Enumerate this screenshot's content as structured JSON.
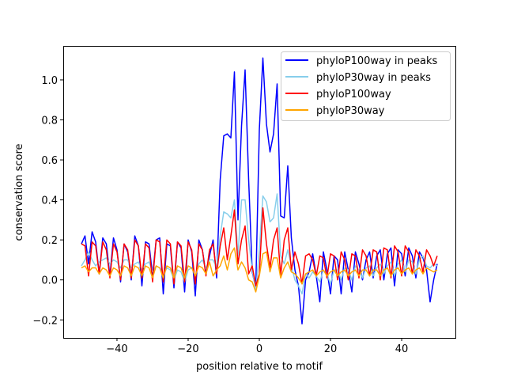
{
  "chart_data": {
    "type": "line",
    "title": "",
    "xlabel": "position relative to motif",
    "ylabel": "conservation score",
    "xlim": [
      -55.1,
      55.1
    ],
    "ylim": [
      -0.29,
      1.17
    ],
    "xticks": [
      -40,
      -20,
      0,
      20,
      40
    ],
    "xtick_labels": [
      "−40",
      "−20",
      "0",
      "20",
      "40"
    ],
    "yticks": [
      -0.2,
      0.0,
      0.2,
      0.4,
      0.6,
      0.8,
      1.0
    ],
    "ytick_labels": [
      "−0.2",
      "0.0",
      "0.2",
      "0.4",
      "0.6",
      "0.8",
      "1.0"
    ],
    "grid": false,
    "legend_position": "top-right",
    "x_range": [
      -50,
      50
    ],
    "series": [
      {
        "name": "phyloP100way in peaks",
        "color": "#0000ff",
        "values": [
          0.18,
          0.22,
          0.08,
          0.24,
          0.19,
          0.03,
          0.21,
          0.18,
          0.02,
          0.21,
          0.15,
          -0.01,
          0.18,
          0.14,
          0.0,
          0.22,
          0.17,
          -0.03,
          0.19,
          0.18,
          0.02,
          0.2,
          0.21,
          -0.07,
          0.18,
          0.17,
          -0.04,
          0.19,
          0.16,
          -0.06,
          0.2,
          0.14,
          -0.08,
          0.2,
          0.15,
          0.03,
          0.12,
          0.2,
          0.01,
          0.5,
          0.72,
          0.73,
          0.71,
          1.04,
          0.3,
          0.77,
          1.05,
          0.5,
          0.04,
          -0.04,
          0.75,
          1.11,
          0.78,
          0.64,
          0.73,
          0.98,
          0.32,
          0.31,
          0.57,
          0.21,
          0.05,
          -0.03,
          -0.22,
          0.0,
          0.04,
          0.13,
          0.02,
          -0.11,
          0.14,
          0.05,
          -0.07,
          0.12,
          0.1,
          -0.07,
          0.14,
          0.05,
          -0.06,
          0.14,
          0.08,
          0.0,
          0.1,
          0.14,
          0.01,
          0.12,
          0.15,
          0.0,
          0.13,
          0.16,
          -0.03,
          0.15,
          0.13,
          0.02,
          0.16,
          0.12,
          0.01,
          0.14,
          0.11,
          0.05,
          -0.11,
          0.0,
          0.08
        ]
      },
      {
        "name": "phyloP30way in peaks",
        "color": "#87ceeb",
        "values": [
          0.07,
          0.1,
          0.14,
          0.1,
          0.07,
          0.09,
          0.1,
          0.11,
          0.08,
          0.1,
          0.09,
          0.06,
          0.1,
          0.1,
          0.06,
          0.08,
          0.09,
          0.05,
          0.08,
          0.09,
          0.04,
          0.07,
          0.06,
          0.02,
          0.06,
          0.05,
          0.0,
          0.05,
          0.04,
          -0.01,
          0.05,
          0.06,
          0.02,
          0.08,
          0.1,
          0.06,
          0.1,
          0.1,
          0.06,
          0.22,
          0.34,
          0.33,
          0.31,
          0.4,
          0.12,
          0.4,
          0.4,
          0.2,
          0.05,
          -0.05,
          0.15,
          0.42,
          0.39,
          0.29,
          0.31,
          0.43,
          0.12,
          0.08,
          0.15,
          0.07,
          0.0,
          -0.03,
          -0.07,
          0.03,
          0.01,
          0.04,
          0.02,
          -0.01,
          0.05,
          0.03,
          -0.02,
          0.05,
          0.05,
          0.0,
          0.06,
          0.05,
          0.0,
          0.07,
          0.05,
          0.01,
          0.06,
          0.07,
          0.02,
          0.06,
          0.08,
          0.03,
          0.07,
          0.09,
          0.02,
          0.08,
          0.1,
          0.04,
          0.1,
          0.09,
          0.03,
          0.1,
          0.12,
          0.07,
          0.06,
          0.08,
          0.07
        ]
      },
      {
        "name": "phyloP100way",
        "color": "#ff0000",
        "values": [
          0.18,
          0.17,
          0.02,
          0.19,
          0.17,
          0.03,
          0.19,
          0.15,
          0.01,
          0.18,
          0.14,
          0.0,
          0.18,
          0.15,
          0.01,
          0.2,
          0.17,
          0.01,
          0.18,
          0.16,
          -0.01,
          0.2,
          0.19,
          -0.01,
          0.2,
          0.18,
          -0.02,
          0.19,
          0.17,
          -0.01,
          0.19,
          0.15,
          -0.02,
          0.18,
          0.15,
          0.02,
          0.15,
          0.18,
          0.03,
          0.17,
          0.26,
          0.1,
          0.22,
          0.35,
          0.08,
          0.2,
          0.27,
          0.03,
          0.07,
          -0.03,
          0.03,
          0.36,
          0.18,
          0.06,
          0.2,
          0.26,
          0.02,
          0.2,
          0.26,
          0.05,
          0.14,
          0.08,
          -0.02,
          0.12,
          0.13,
          0.1,
          0.02,
          0.12,
          0.11,
          0.01,
          0.13,
          0.12,
          0.0,
          0.14,
          0.1,
          0.0,
          0.13,
          0.12,
          0.01,
          0.15,
          0.12,
          0.02,
          0.15,
          0.14,
          0.0,
          0.16,
          0.15,
          0.01,
          0.17,
          0.14,
          0.02,
          0.17,
          0.14,
          0.03,
          0.15,
          0.12,
          0.04,
          0.15,
          0.12,
          0.07,
          0.12
        ]
      },
      {
        "name": "phyloP30way",
        "color": "#ffa500",
        "values": [
          0.06,
          0.07,
          0.04,
          0.06,
          0.06,
          0.03,
          0.06,
          0.05,
          0.02,
          0.06,
          0.05,
          0.02,
          0.07,
          0.06,
          0.02,
          0.07,
          0.06,
          0.02,
          0.07,
          0.06,
          0.01,
          0.07,
          0.06,
          0.01,
          0.07,
          0.06,
          0.01,
          0.07,
          0.06,
          0.01,
          0.07,
          0.06,
          0.02,
          0.07,
          0.06,
          0.03,
          0.09,
          0.02,
          0.05,
          0.07,
          0.12,
          0.05,
          0.13,
          0.16,
          0.05,
          0.09,
          0.06,
          0.0,
          -0.01,
          -0.06,
          0.02,
          0.13,
          0.14,
          0.04,
          0.11,
          0.11,
          0.01,
          0.06,
          0.09,
          0.04,
          0.03,
          0.01,
          -0.02,
          0.03,
          0.04,
          0.05,
          0.02,
          0.04,
          0.05,
          0.02,
          0.04,
          0.05,
          0.02,
          0.04,
          0.05,
          0.02,
          0.04,
          0.05,
          0.02,
          0.05,
          0.05,
          0.02,
          0.05,
          0.05,
          0.02,
          0.05,
          0.06,
          0.02,
          0.05,
          0.06,
          0.03,
          0.05,
          0.06,
          0.03,
          0.05,
          0.06,
          0.03,
          0.06,
          0.05,
          0.04,
          0.05
        ]
      }
    ]
  }
}
